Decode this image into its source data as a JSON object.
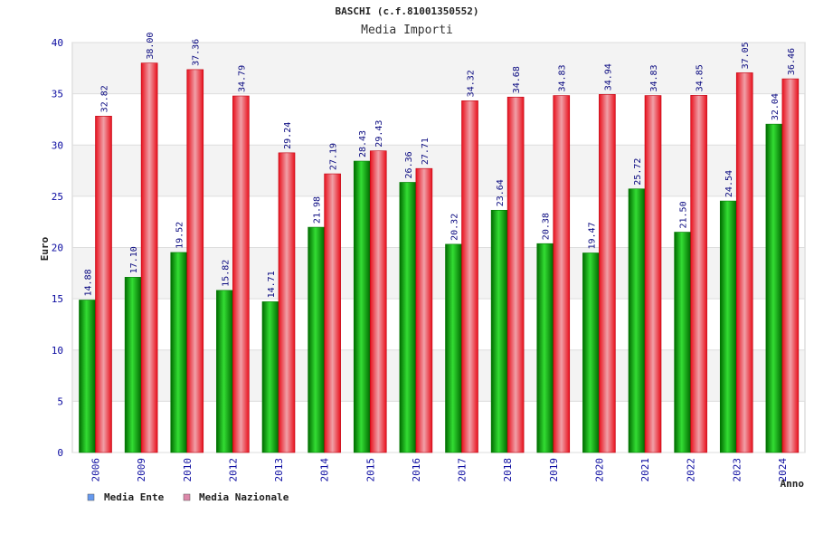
{
  "chart_data": {
    "type": "bar",
    "title": "BASCHI (c.f.81001350552)",
    "subtitle": "Media Importi",
    "ylabel": "Euro",
    "xlabel": "Anno",
    "ylim": [
      0,
      40
    ],
    "yticks": [
      "0",
      "5",
      "10",
      "15",
      "20",
      "25",
      "30",
      "35",
      "40"
    ],
    "grid": true,
    "categories": [
      "2006",
      "2009",
      "2010",
      "2012",
      "2013",
      "2014",
      "2015",
      "2016",
      "2017",
      "2018",
      "2019",
      "2020",
      "2021",
      "2022",
      "2023",
      "2024"
    ],
    "series": [
      {
        "name": "Media Ente",
        "color": "#00b000",
        "values": [
          14.88,
          17.1,
          19.52,
          15.82,
          14.71,
          21.98,
          28.43,
          26.36,
          20.32,
          23.64,
          20.38,
          19.47,
          25.72,
          21.5,
          24.54,
          32.04
        ],
        "labels": [
          "14.88",
          "17.10",
          "19.52",
          "15.82",
          "14.71",
          "21.98",
          "28.43",
          "26.36",
          "20.32",
          "23.64",
          "20.38",
          "19.47",
          "25.72",
          "21.50",
          "24.54",
          "32.04"
        ]
      },
      {
        "name": "Media Nazionale",
        "color": "#e8202a",
        "values": [
          32.82,
          38.0,
          37.36,
          34.79,
          29.24,
          27.19,
          29.43,
          27.71,
          34.32,
          34.68,
          34.83,
          34.94,
          34.83,
          34.85,
          37.05,
          36.46
        ],
        "labels": [
          "32.82",
          "38.00",
          "37.36",
          "34.79",
          "29.24",
          "27.19",
          "29.43",
          "27.71",
          "34.32",
          "34.68",
          "34.83",
          "34.94",
          "34.83",
          "34.85",
          "37.05",
          "36.46"
        ]
      }
    ],
    "legend": [
      {
        "label": "Media Ente",
        "swatch": "#6699ee"
      },
      {
        "label": "Media Nazionale",
        "swatch": "#dd88aa"
      }
    ],
    "legend_position": "bottom-left"
  }
}
